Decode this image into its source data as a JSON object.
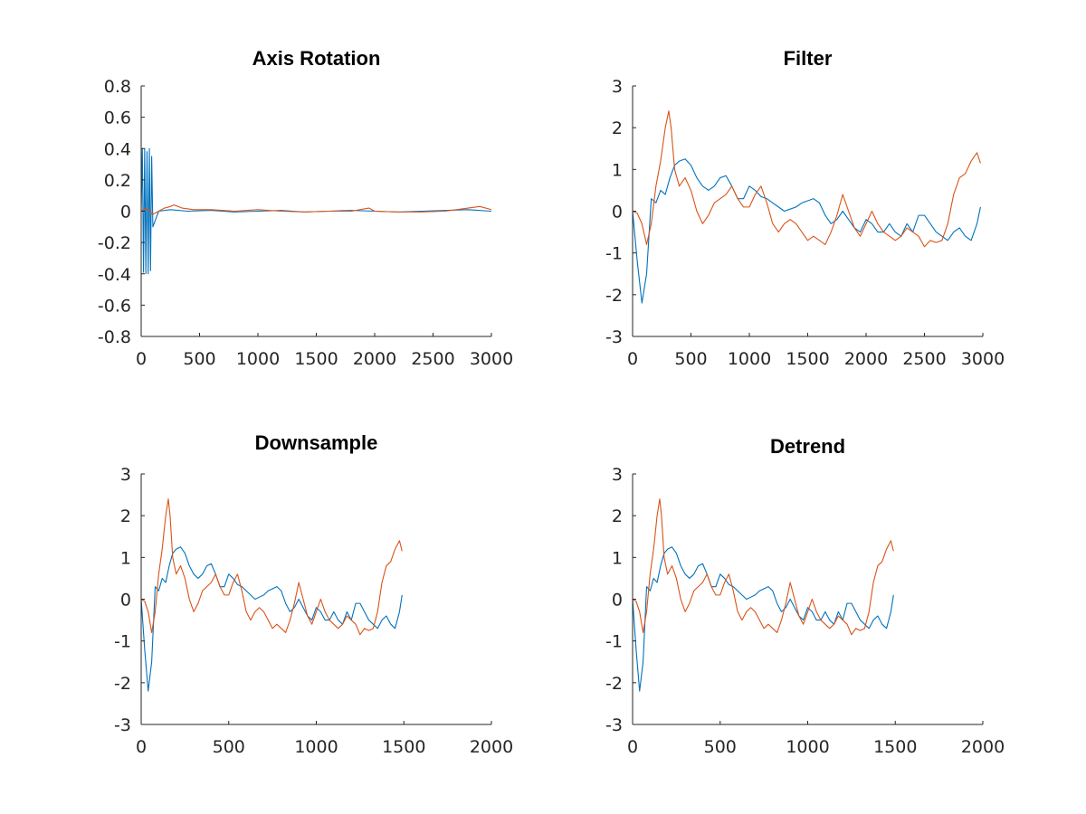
{
  "chart_data": [
    {
      "type": "line",
      "title": "Axis Rotation",
      "xlim": [
        0,
        3000
      ],
      "ylim": [
        -0.8,
        0.8
      ],
      "xticks": [
        0,
        500,
        1000,
        1500,
        2000,
        2500,
        3000
      ],
      "yticks": [
        -0.8,
        -0.6,
        -0.4,
        -0.2,
        0,
        0.2,
        0.4,
        0.6,
        0.8
      ],
      "xtick_labels": [
        "0",
        "500",
        "1000",
        "1500",
        "2000",
        "2500",
        "3000"
      ],
      "ytick_labels": [
        "-0.8",
        "-0.6",
        "-0.4",
        "-0.2",
        "0",
        "0.2",
        "0.4",
        "0.6",
        "0.8"
      ],
      "grid": false,
      "series": [
        {
          "color": "#0072BD",
          "x": [
            0,
            10,
            20,
            30,
            40,
            50,
            60,
            70,
            80,
            90,
            100,
            150,
            250,
            400,
            600,
            800,
            1000,
            1200,
            1400,
            1600,
            1800,
            2000,
            2200,
            2400,
            2600,
            2800,
            3000
          ],
          "y": [
            0.0,
            0.4,
            -0.39,
            0.4,
            -0.4,
            0.38,
            -0.4,
            0.4,
            -0.38,
            0.35,
            -0.1,
            0.0,
            0.01,
            0.0,
            0.005,
            -0.005,
            0.0,
            0.005,
            -0.005,
            0.0,
            0.005,
            0.0,
            -0.005,
            0.0,
            0.005,
            0.01,
            0.0
          ]
        },
        {
          "color": "#D95319",
          "x": [
            0,
            50,
            100,
            150,
            200,
            250,
            280,
            350,
            450,
            600,
            800,
            1000,
            1200,
            1400,
            1600,
            1800,
            1950,
            2000,
            2200,
            2400,
            2600,
            2800,
            2900,
            3000
          ],
          "y": [
            0.0,
            0.02,
            -0.02,
            0.0,
            0.02,
            0.03,
            0.04,
            0.02,
            0.01,
            0.01,
            0.0,
            0.01,
            0.0,
            -0.005,
            0.0,
            0.0,
            0.02,
            0.0,
            -0.005,
            -0.005,
            0.0,
            0.02,
            0.03,
            0.01
          ]
        }
      ]
    },
    {
      "type": "line",
      "title": "Filter",
      "xlim": [
        0,
        3000
      ],
      "ylim": [
        -3,
        3
      ],
      "xticks": [
        0,
        500,
        1000,
        1500,
        2000,
        2500,
        3000
      ],
      "yticks": [
        -3,
        -2,
        -1,
        0,
        1,
        2,
        3
      ],
      "xtick_labels": [
        "0",
        "500",
        "1000",
        "1500",
        "2000",
        "2500",
        "3000"
      ],
      "ytick_labels": [
        "-3",
        "-2",
        "-1",
        "0",
        "1",
        "2",
        "3"
      ],
      "grid": false,
      "series": [
        {
          "color": "#0072BD",
          "x": [
            0,
            40,
            80,
            120,
            160,
            200,
            240,
            280,
            320,
            360,
            400,
            450,
            500,
            550,
            600,
            650,
            700,
            750,
            800,
            850,
            900,
            950,
            1000,
            1050,
            1100,
            1150,
            1200,
            1250,
            1300,
            1350,
            1400,
            1450,
            1500,
            1550,
            1600,
            1650,
            1700,
            1750,
            1800,
            1850,
            1900,
            1950,
            2000,
            2050,
            2100,
            2150,
            2200,
            2250,
            2300,
            2350,
            2400,
            2450,
            2500,
            2550,
            2600,
            2650,
            2700,
            2750,
            2800,
            2850,
            2900,
            2950,
            2980
          ],
          "y": [
            0.0,
            -1.2,
            -2.2,
            -1.5,
            0.3,
            0.2,
            0.5,
            0.4,
            0.8,
            1.1,
            1.2,
            1.25,
            1.1,
            0.8,
            0.6,
            0.5,
            0.6,
            0.8,
            0.85,
            0.6,
            0.3,
            0.3,
            0.6,
            0.5,
            0.35,
            0.3,
            0.2,
            0.1,
            0.0,
            0.05,
            0.1,
            0.2,
            0.25,
            0.3,
            0.2,
            -0.1,
            -0.3,
            -0.2,
            0.0,
            -0.2,
            -0.4,
            -0.5,
            -0.2,
            -0.3,
            -0.5,
            -0.5,
            -0.3,
            -0.5,
            -0.6,
            -0.3,
            -0.5,
            -0.1,
            -0.1,
            -0.3,
            -0.5,
            -0.6,
            -0.7,
            -0.5,
            -0.4,
            -0.6,
            -0.7,
            -0.3,
            0.1
          ]
        },
        {
          "color": "#D95319",
          "x": [
            0,
            40,
            80,
            120,
            160,
            200,
            240,
            280,
            310,
            330,
            360,
            400,
            450,
            500,
            550,
            600,
            650,
            700,
            750,
            800,
            850,
            900,
            950,
            1000,
            1050,
            1100,
            1150,
            1200,
            1250,
            1300,
            1350,
            1400,
            1450,
            1500,
            1550,
            1600,
            1650,
            1700,
            1750,
            1800,
            1850,
            1900,
            1950,
            2000,
            2050,
            2100,
            2150,
            2200,
            2250,
            2300,
            2350,
            2400,
            2450,
            2500,
            2550,
            2600,
            2650,
            2700,
            2750,
            2800,
            2850,
            2900,
            2950,
            2980
          ],
          "y": [
            0.0,
            -0.05,
            -0.3,
            -0.8,
            -0.3,
            0.6,
            1.2,
            2.0,
            2.4,
            2.0,
            1.0,
            0.6,
            0.8,
            0.5,
            0.0,
            -0.3,
            -0.1,
            0.2,
            0.3,
            0.4,
            0.6,
            0.3,
            0.1,
            0.1,
            0.4,
            0.6,
            0.2,
            -0.3,
            -0.5,
            -0.3,
            -0.2,
            -0.3,
            -0.5,
            -0.7,
            -0.6,
            -0.7,
            -0.8,
            -0.5,
            -0.1,
            0.4,
            0.0,
            -0.4,
            -0.6,
            -0.3,
            0.0,
            -0.3,
            -0.5,
            -0.6,
            -0.7,
            -0.6,
            -0.4,
            -0.5,
            -0.6,
            -0.85,
            -0.7,
            -0.75,
            -0.7,
            -0.3,
            0.4,
            0.8,
            0.9,
            1.2,
            1.4,
            1.15
          ]
        }
      ]
    },
    {
      "type": "line",
      "title": "Downsample",
      "xlim": [
        0,
        2000
      ],
      "ylim": [
        -3,
        3
      ],
      "xticks": [
        0,
        500,
        1000,
        1500,
        2000
      ],
      "yticks": [
        -3,
        -2,
        -1,
        0,
        1,
        2,
        3
      ],
      "xtick_labels": [
        "0",
        "500",
        "1000",
        "1500",
        "2000"
      ],
      "ytick_labels": [
        "-3",
        "-2",
        "-1",
        "0",
        "1",
        "2",
        "3"
      ],
      "grid": false,
      "series": [
        {
          "color": "#0072BD",
          "x": [
            0,
            20,
            40,
            60,
            80,
            100,
            120,
            140,
            160,
            180,
            200,
            225,
            250,
            275,
            300,
            325,
            350,
            375,
            400,
            425,
            450,
            475,
            500,
            525,
            550,
            575,
            600,
            625,
            650,
            675,
            700,
            725,
            750,
            775,
            800,
            825,
            850,
            875,
            900,
            925,
            950,
            975,
            1000,
            1025,
            1050,
            1075,
            1100,
            1125,
            1150,
            1175,
            1200,
            1225,
            1250,
            1275,
            1300,
            1325,
            1350,
            1375,
            1400,
            1425,
            1450,
            1475,
            1490
          ],
          "y": [
            0.0,
            -1.2,
            -2.2,
            -1.5,
            0.3,
            0.2,
            0.5,
            0.4,
            0.8,
            1.1,
            1.2,
            1.25,
            1.1,
            0.8,
            0.6,
            0.5,
            0.6,
            0.8,
            0.85,
            0.6,
            0.3,
            0.3,
            0.6,
            0.5,
            0.35,
            0.3,
            0.2,
            0.1,
            0.0,
            0.05,
            0.1,
            0.2,
            0.25,
            0.3,
            0.2,
            -0.1,
            -0.3,
            -0.2,
            0.0,
            -0.2,
            -0.4,
            -0.5,
            -0.2,
            -0.3,
            -0.5,
            -0.5,
            -0.3,
            -0.5,
            -0.6,
            -0.3,
            -0.5,
            -0.1,
            -0.1,
            -0.3,
            -0.5,
            -0.6,
            -0.7,
            -0.5,
            -0.4,
            -0.6,
            -0.7,
            -0.3,
            0.1
          ]
        },
        {
          "color": "#D95319",
          "x": [
            0,
            20,
            40,
            60,
            80,
            100,
            120,
            140,
            155,
            165,
            180,
            200,
            225,
            250,
            275,
            300,
            325,
            350,
            375,
            400,
            425,
            450,
            475,
            500,
            525,
            550,
            575,
            600,
            625,
            650,
            675,
            700,
            725,
            750,
            775,
            800,
            825,
            850,
            875,
            900,
            925,
            950,
            975,
            1000,
            1025,
            1050,
            1075,
            1100,
            1125,
            1150,
            1175,
            1200,
            1225,
            1250,
            1275,
            1300,
            1325,
            1350,
            1375,
            1400,
            1425,
            1450,
            1475,
            1490
          ],
          "y": [
            0.0,
            -0.05,
            -0.3,
            -0.8,
            -0.3,
            0.6,
            1.2,
            2.0,
            2.4,
            2.0,
            1.0,
            0.6,
            0.8,
            0.5,
            0.0,
            -0.3,
            -0.1,
            0.2,
            0.3,
            0.4,
            0.6,
            0.3,
            0.1,
            0.1,
            0.4,
            0.6,
            0.2,
            -0.3,
            -0.5,
            -0.3,
            -0.2,
            -0.3,
            -0.5,
            -0.7,
            -0.6,
            -0.7,
            -0.8,
            -0.5,
            -0.1,
            0.4,
            0.0,
            -0.4,
            -0.6,
            -0.3,
            0.0,
            -0.3,
            -0.5,
            -0.6,
            -0.7,
            -0.6,
            -0.4,
            -0.5,
            -0.6,
            -0.85,
            -0.7,
            -0.75,
            -0.7,
            -0.3,
            0.4,
            0.8,
            0.9,
            1.2,
            1.4,
            1.15
          ]
        }
      ]
    },
    {
      "type": "line",
      "title": "Detrend",
      "xlim": [
        0,
        2000
      ],
      "ylim": [
        -3,
        3
      ],
      "xticks": [
        0,
        500,
        1000,
        1500,
        2000
      ],
      "yticks": [
        -3,
        -2,
        -1,
        0,
        1,
        2,
        3
      ],
      "xtick_labels": [
        "0",
        "500",
        "1000",
        "1500",
        "2000"
      ],
      "ytick_labels": [
        "-3",
        "-2",
        "-1",
        "0",
        "1",
        "2",
        "3"
      ],
      "grid": false,
      "series": [
        {
          "color": "#0072BD",
          "x": [
            0,
            20,
            40,
            60,
            80,
            100,
            120,
            140,
            160,
            180,
            200,
            225,
            250,
            275,
            300,
            325,
            350,
            375,
            400,
            425,
            450,
            475,
            500,
            525,
            550,
            575,
            600,
            625,
            650,
            675,
            700,
            725,
            750,
            775,
            800,
            825,
            850,
            875,
            900,
            925,
            950,
            975,
            1000,
            1025,
            1050,
            1075,
            1100,
            1125,
            1150,
            1175,
            1200,
            1225,
            1250,
            1275,
            1300,
            1325,
            1350,
            1375,
            1400,
            1425,
            1450,
            1475,
            1490
          ],
          "y": [
            0.0,
            -1.2,
            -2.2,
            -1.5,
            0.3,
            0.2,
            0.5,
            0.4,
            0.8,
            1.1,
            1.2,
            1.25,
            1.1,
            0.8,
            0.6,
            0.5,
            0.6,
            0.8,
            0.85,
            0.6,
            0.3,
            0.3,
            0.6,
            0.5,
            0.35,
            0.3,
            0.2,
            0.1,
            0.0,
            0.05,
            0.1,
            0.2,
            0.25,
            0.3,
            0.2,
            -0.1,
            -0.3,
            -0.2,
            0.0,
            -0.2,
            -0.4,
            -0.5,
            -0.2,
            -0.3,
            -0.5,
            -0.5,
            -0.3,
            -0.5,
            -0.6,
            -0.3,
            -0.5,
            -0.1,
            -0.1,
            -0.3,
            -0.5,
            -0.6,
            -0.7,
            -0.5,
            -0.4,
            -0.6,
            -0.7,
            -0.3,
            0.1
          ]
        },
        {
          "color": "#D95319",
          "x": [
            0,
            20,
            40,
            60,
            80,
            100,
            120,
            140,
            155,
            165,
            180,
            200,
            225,
            250,
            275,
            300,
            325,
            350,
            375,
            400,
            425,
            450,
            475,
            500,
            525,
            550,
            575,
            600,
            625,
            650,
            675,
            700,
            725,
            750,
            775,
            800,
            825,
            850,
            875,
            900,
            925,
            950,
            975,
            1000,
            1025,
            1050,
            1075,
            1100,
            1125,
            1150,
            1175,
            1200,
            1225,
            1250,
            1275,
            1300,
            1325,
            1350,
            1375,
            1400,
            1425,
            1450,
            1475,
            1490
          ],
          "y": [
            0.0,
            -0.05,
            -0.3,
            -0.8,
            -0.3,
            0.6,
            1.2,
            2.0,
            2.4,
            2.0,
            1.0,
            0.6,
            0.8,
            0.5,
            0.0,
            -0.3,
            -0.1,
            0.2,
            0.3,
            0.4,
            0.6,
            0.3,
            0.1,
            0.1,
            0.4,
            0.6,
            0.2,
            -0.3,
            -0.5,
            -0.3,
            -0.2,
            -0.3,
            -0.5,
            -0.7,
            -0.6,
            -0.7,
            -0.8,
            -0.5,
            -0.1,
            0.4,
            0.0,
            -0.4,
            -0.6,
            -0.3,
            0.0,
            -0.3,
            -0.5,
            -0.6,
            -0.7,
            -0.6,
            -0.4,
            -0.5,
            -0.6,
            -0.85,
            -0.7,
            -0.75,
            -0.7,
            -0.3,
            0.4,
            0.8,
            0.9,
            1.2,
            1.4,
            1.15
          ]
        }
      ]
    }
  ]
}
